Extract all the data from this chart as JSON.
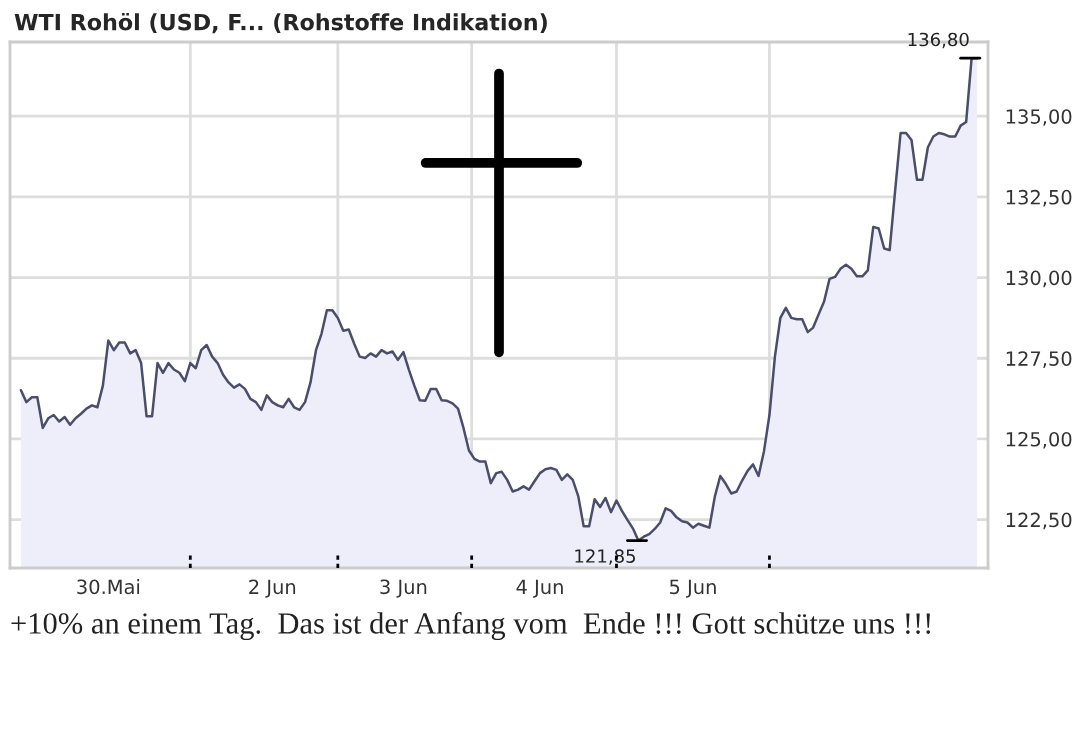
{
  "chart_data": {
    "type": "area",
    "title": "WTI Rohöl (USD, F... (Rohstoffe Indikation)",
    "categories": [
      null,
      null,
      null,
      null,
      null,
      null,
      null,
      null,
      null,
      null,
      null,
      null,
      null,
      null,
      null,
      null,
      "30.Mai",
      null,
      null,
      null,
      null,
      null,
      null,
      null,
      null,
      null,
      null,
      null,
      null,
      null,
      null,
      null,
      null,
      null,
      null,
      null,
      null,
      null,
      null,
      null,
      null,
      null,
      null,
      null,
      null,
      null,
      "2 Jun",
      null,
      null,
      null,
      null,
      null,
      null,
      null,
      null,
      null,
      null,
      null,
      null,
      null,
      null,
      null,
      null,
      null,
      null,
      null,
      null,
      null,
      null,
      null,
      "3 Jun",
      null,
      null,
      null,
      null,
      null,
      null,
      null,
      null,
      null,
      null,
      null,
      null,
      null,
      null,
      null,
      null,
      null,
      null,
      null,
      null,
      null,
      null,
      null,
      null,
      "4 Jun",
      null,
      null,
      null,
      null,
      null,
      null,
      null,
      null,
      null,
      null,
      null,
      null,
      null,
      null,
      null,
      null,
      null,
      null,
      null,
      null,
      null,
      null,
      null,
      null,
      null,
      null,
      null,
      "5 Jun",
      null,
      null,
      null,
      null,
      null,
      null,
      null,
      null,
      null,
      null,
      null,
      null,
      null,
      null,
      null,
      null,
      null,
      null,
      null,
      null,
      null,
      null,
      null,
      null,
      null,
      null,
      null,
      null,
      null,
      null,
      null,
      null,
      null,
      null,
      null,
      null,
      null,
      null,
      null,
      null,
      null,
      null,
      null,
      null,
      null,
      null,
      null,
      null,
      null,
      null,
      null,
      null
    ],
    "series": [
      {
        "color": "#4a4e6a",
        "values": [
          126.51,
          126.14,
          126.29,
          126.29,
          125.34,
          125.64,
          125.74,
          125.54,
          125.68,
          125.44,
          125.64,
          125.78,
          125.94,
          126.04,
          125.98,
          126.65,
          128.05,
          127.75,
          127.99,
          127.99,
          127.65,
          127.75,
          127.35,
          125.7,
          125.7,
          127.35,
          127.05,
          127.35,
          127.15,
          127.05,
          126.79,
          127.35,
          127.19,
          127.75,
          127.91,
          127.55,
          127.35,
          126.99,
          126.75,
          126.59,
          126.69,
          126.55,
          126.24,
          126.14,
          125.9,
          126.35,
          126.14,
          126.04,
          125.98,
          126.24,
          125.98,
          125.9,
          126.14,
          126.75,
          127.75,
          128.25,
          128.99,
          128.99,
          128.75,
          128.35,
          128.39,
          127.95,
          127.55,
          127.51,
          127.65,
          127.55,
          127.75,
          127.65,
          127.71,
          127.45,
          127.69,
          127.15,
          126.65,
          126.2,
          126.18,
          126.55,
          126.55,
          126.2,
          126.18,
          126.1,
          125.94,
          125.34,
          124.64,
          124.38,
          124.3,
          124.3,
          123.63,
          123.94,
          123.98,
          123.73,
          123.37,
          123.43,
          123.53,
          123.43,
          123.69,
          123.94,
          124.06,
          124.1,
          124.04,
          123.73,
          123.9,
          123.73,
          123.23,
          122.29,
          122.29,
          123.13,
          122.89,
          123.17,
          122.73,
          123.09,
          122.77,
          122.49,
          122.23,
          121.85,
          121.97,
          122.05,
          122.21,
          122.41,
          122.85,
          122.77,
          122.57,
          122.45,
          122.41,
          122.25,
          122.37,
          122.31,
          122.25,
          123.21,
          123.85,
          123.61,
          123.31,
          123.37,
          123.71,
          124.01,
          124.21,
          123.85,
          124.62,
          125.74,
          127.55,
          128.75,
          129.06,
          128.75,
          128.71,
          128.71,
          128.31,
          128.45,
          128.86,
          129.26,
          129.96,
          130.02,
          130.27,
          130.4,
          130.27,
          130.04,
          130.04,
          130.22,
          131.57,
          131.52,
          130.9,
          130.85,
          132.69,
          134.48,
          134.48,
          134.26,
          133.03,
          133.03,
          134.04,
          134.37,
          134.48,
          134.44,
          134.37,
          134.37,
          134.71,
          134.82,
          136.8,
          136.8
        ]
      }
    ],
    "ylim": [
      121.0,
      137.3
    ],
    "yticks": [
      {
        "value": 122.5,
        "label": "122,50"
      },
      {
        "value": 125,
        "label": "125,00"
      },
      {
        "value": 127.5,
        "label": "127,50"
      },
      {
        "value": 130,
        "label": "130,00"
      },
      {
        "value": 132.5,
        "label": "132,50"
      },
      {
        "value": 135,
        "label": "135,00"
      }
    ],
    "grid": true,
    "annotations": [
      "136,80",
      "121,85",
      "+10% an einem Tag.  Das ist der Anfang vom  Ende !!! Gott schütze uns !!!"
    ]
  }
}
